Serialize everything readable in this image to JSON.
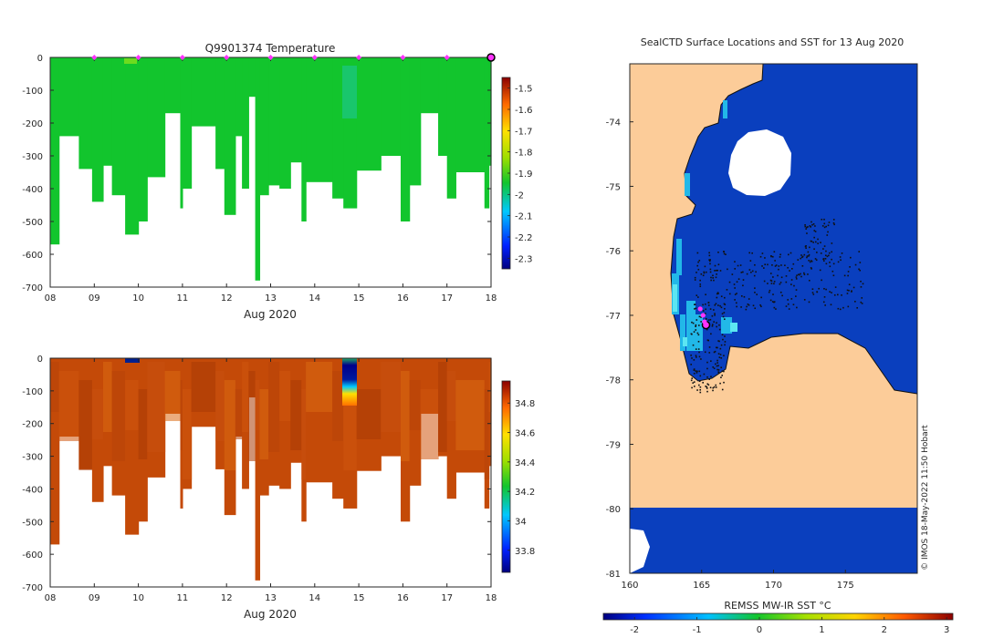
{
  "colors": {
    "land": "#fccc99",
    "ocean": "#0a3fbe",
    "temp_fill": "#12c52d",
    "sal_fill": "#c44a08",
    "seal_marker": "#ff33ff"
  },
  "chart_data": [
    {
      "id": "temperature",
      "type": "heatmap",
      "title": "Q9901374  Temperature",
      "xlabel": "Aug 2020",
      "x_ticks": [
        "08",
        "09",
        "10",
        "11",
        "12",
        "13",
        "14",
        "15",
        "16",
        "17",
        "18"
      ],
      "xlim": [
        8,
        18
      ],
      "ylim": [
        -700,
        0
      ],
      "y_ticks": [
        0,
        -100,
        -200,
        -300,
        -400,
        -500,
        -600,
        -700
      ],
      "colorbar": {
        "min": -2.35,
        "max": -1.45,
        "ticks": [
          -1.5,
          -1.6,
          -1.7,
          -1.8,
          -1.9,
          -2,
          -2.1,
          -2.2,
          -2.3
        ],
        "tick_labels": [
          "-1.5",
          "-1.6",
          "-1.7",
          "-1.8",
          "-1.9",
          "-2",
          "-2.1",
          "-2.2",
          "-2.3"
        ]
      },
      "surface_markers_day": [
        9,
        10,
        11,
        12,
        13,
        14,
        15,
        16,
        17
      ],
      "last_position_day": 18,
      "profile_bottoms": [
        {
          "start": 8.0,
          "end": 8.2,
          "depth": 570
        },
        {
          "start": 8.2,
          "end": 8.65,
          "depth": 240
        },
        {
          "start": 8.65,
          "end": 8.95,
          "depth": 340
        },
        {
          "start": 8.95,
          "end": 9.2,
          "depth": 440
        },
        {
          "start": 9.2,
          "end": 9.4,
          "depth": 330
        },
        {
          "start": 9.4,
          "end": 9.7,
          "depth": 420
        },
        {
          "start": 9.7,
          "end": 10.0,
          "depth": 540
        },
        {
          "start": 10.0,
          "end": 10.2,
          "depth": 500
        },
        {
          "start": 10.2,
          "end": 10.6,
          "depth": 365
        },
        {
          "start": 10.6,
          "end": 10.95,
          "depth": 170
        },
        {
          "start": 10.95,
          "end": 11.0,
          "depth": 460
        },
        {
          "start": 11.0,
          "end": 11.2,
          "depth": 400
        },
        {
          "start": 11.2,
          "end": 11.75,
          "depth": 210
        },
        {
          "start": 11.75,
          "end": 11.95,
          "depth": 340
        },
        {
          "start": 11.95,
          "end": 12.2,
          "depth": 480
        },
        {
          "start": 12.2,
          "end": 12.35,
          "depth": 240
        },
        {
          "start": 12.35,
          "end": 12.5,
          "depth": 400
        },
        {
          "start": 12.5,
          "end": 12.65,
          "depth": 120
        },
        {
          "start": 12.65,
          "end": 12.75,
          "depth": 680
        },
        {
          "start": 12.75,
          "end": 12.95,
          "depth": 420
        },
        {
          "start": 12.95,
          "end": 13.2,
          "depth": 390
        },
        {
          "start": 13.2,
          "end": 13.45,
          "depth": 400
        },
        {
          "start": 13.45,
          "end": 13.7,
          "depth": 320
        },
        {
          "start": 13.7,
          "end": 13.8,
          "depth": 500
        },
        {
          "start": 13.8,
          "end": 14.4,
          "depth": 380
        },
        {
          "start": 14.4,
          "end": 14.65,
          "depth": 430
        },
        {
          "start": 14.65,
          "end": 14.95,
          "depth": 460
        },
        {
          "start": 14.95,
          "end": 15.5,
          "depth": 345
        },
        {
          "start": 15.5,
          "end": 15.95,
          "depth": 300
        },
        {
          "start": 15.95,
          "end": 16.15,
          "depth": 500
        },
        {
          "start": 16.15,
          "end": 16.4,
          "depth": 390
        },
        {
          "start": 16.4,
          "end": 16.8,
          "depth": 170
        },
        {
          "start": 16.8,
          "end": 17.0,
          "depth": 300
        },
        {
          "start": 17.0,
          "end": 17.2,
          "depth": 430
        },
        {
          "start": 17.2,
          "end": 17.85,
          "depth": 350
        },
        {
          "start": 17.85,
          "end": 17.95,
          "depth": 460
        },
        {
          "start": 17.95,
          "end": 18.05,
          "depth": 330
        }
      ]
    },
    {
      "id": "salinity",
      "type": "heatmap",
      "title": "",
      "xlabel": "Aug 2020",
      "x_ticks": [
        "08",
        "09",
        "10",
        "11",
        "12",
        "13",
        "14",
        "15",
        "16",
        "17",
        "18"
      ],
      "xlim": [
        8,
        18
      ],
      "ylim": [
        -700,
        0
      ],
      "y_ticks": [
        0,
        -100,
        -200,
        -300,
        -400,
        -500,
        -600,
        -700
      ],
      "colorbar": {
        "min": 33.65,
        "max": 34.95,
        "ticks": [
          34.8,
          34.6,
          34.4,
          34.2,
          34,
          33.8
        ],
        "tick_labels": [
          "34.8",
          "34.6",
          "34.4",
          "34.2",
          "34",
          "33.8"
        ]
      },
      "profile_bottoms": "same as temperature"
    },
    {
      "id": "sst_map",
      "type": "heatmap",
      "title": "SealCTD Surface Locations and SST for 13 Aug 2020",
      "xlim": [
        160,
        180
      ],
      "ylim": [
        -81,
        -73.1
      ],
      "x_ticks": [
        "160",
        "165",
        "170",
        "175"
      ],
      "x_tick_values": [
        160,
        165,
        170,
        175
      ],
      "y_ticks": [
        "-74",
        "-75",
        "-76",
        "-77",
        "-78",
        "-79",
        "-80",
        "-81"
      ],
      "y_tick_values": [
        -74,
        -75,
        -76,
        -77,
        -78,
        -79,
        -80,
        -81
      ],
      "colorbar_label": "REMSS MW-IR SST °C",
      "colorbar": {
        "min": -2.5,
        "max": 3.1,
        "ticks": [
          -2,
          -1,
          0,
          1,
          2,
          3
        ],
        "tick_labels": [
          "-2",
          "-1",
          "0",
          "1",
          "2",
          "3"
        ]
      },
      "credit": "© IMOS 18-May-2022 11:50 Hobart",
      "seal_positions": [
        {
          "lon": 164.9,
          "lat": -76.9
        },
        {
          "lon": 165.1,
          "lat": -77.0
        },
        {
          "lon": 165.3,
          "lat": -77.15
        },
        {
          "lon": 165.2,
          "lat": -77.1
        }
      ]
    }
  ]
}
